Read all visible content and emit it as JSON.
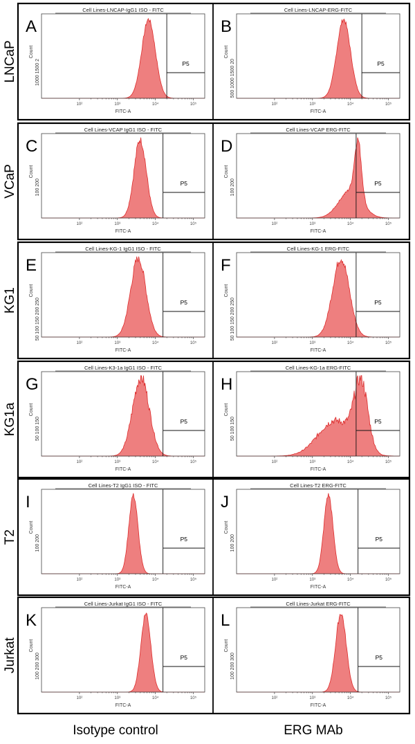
{
  "columns": [
    "Isotype control",
    "ERG MAb"
  ],
  "chart_data": {
    "type": "histogram-grid",
    "x_axis": {
      "label": "FITC-A",
      "scale": "log",
      "ticks": [
        "10²",
        "10³",
        "10⁴",
        "10⁵"
      ],
      "xlim_log10": [
        1.0,
        5.3
      ]
    },
    "gate_name": "P5",
    "fill_color": "#ee7f7f",
    "line_color": "#dd2b2b",
    "rows": [
      {
        "label": "LNCaP",
        "panels": [
          {
            "letter": "A",
            "title": "Cell Lines-LNCAP-IgG1 ISO - FITC",
            "y_label": "Count",
            "y_ticks": "1000 1500 2",
            "gate_start_log10": 4.3,
            "series": {
              "peaks": [
                {
                  "mu": 3.82,
                  "sigma": 0.18,
                  "amp": 1.0
                }
              ],
              "noise": 0.03
            }
          },
          {
            "letter": "B",
            "title": "Cell Lines-LNCAP-ERG-FITC",
            "y_label": "Count",
            "y_ticks": "500 1000 1500 20",
            "gate_start_log10": 4.3,
            "series": {
              "peaks": [
                {
                  "mu": 3.82,
                  "sigma": 0.18,
                  "amp": 1.0
                }
              ],
              "noise": 0.03
            }
          }
        ]
      },
      {
        "label": "VCaP",
        "panels": [
          {
            "letter": "C",
            "title": "Cell Lines-VCAP IgG1 ISO - FITC",
            "y_label": "Count",
            "y_ticks": "100 200",
            "gate_start_log10": 4.2,
            "series": {
              "peaks": [
                {
                  "mu": 3.6,
                  "sigma": 0.16,
                  "amp": 1.0
                }
              ],
              "noise": 0.06
            }
          },
          {
            "letter": "D",
            "title": "Cell Lines-VCAP ERG-FITC",
            "y_label": "Count",
            "y_ticks": "100 200",
            "gate_start_log10": 4.15,
            "series": {
              "peaks": [
                {
                  "mu": 4.0,
                  "sigma": 0.3,
                  "amp": 0.35
                },
                {
                  "mu": 4.2,
                  "sigma": 0.09,
                  "amp": 0.72
                }
              ],
              "noise": 0.05
            }
          }
        ]
      },
      {
        "label": "KG1",
        "panels": [
          {
            "letter": "E",
            "title": "Cell Lines-KG-1 IgG1 ISO - FITC",
            "y_label": "Count",
            "y_ticks": "50 100 150 200 250",
            "gate_start_log10": 4.2,
            "series": {
              "peaks": [
                {
                  "mu": 3.55,
                  "sigma": 0.2,
                  "amp": 1.0
                }
              ],
              "noise": 0.06
            }
          },
          {
            "letter": "F",
            "title": "Cell Lines-KG-1 ERG-FITC",
            "y_label": "Count",
            "y_ticks": "50 100 150 200 250",
            "gate_start_log10": 4.15,
            "series": {
              "peaks": [
                {
                  "mu": 3.75,
                  "sigma": 0.22,
                  "amp": 1.0
                }
              ],
              "noise": 0.06
            }
          }
        ]
      },
      {
        "label": "KG1a",
        "panels": [
          {
            "letter": "G",
            "title": "Cell Lines-K3-1a IgG1 ISO - FITC",
            "y_label": "Count",
            "y_ticks": "50 100 150",
            "gate_start_log10": 4.2,
            "series": {
              "peaks": [
                {
                  "mu": 3.62,
                  "sigma": 0.22,
                  "amp": 1.0
                }
              ],
              "noise": 0.08
            }
          },
          {
            "letter": "H",
            "title": "Cell Lines-KG-1a ERG-FITC",
            "y_label": "Count",
            "y_ticks": "50 100 150",
            "gate_start_log10": 4.15,
            "series": {
              "peaks": [
                {
                  "mu": 3.6,
                  "sigma": 0.45,
                  "amp": 0.45
                },
                {
                  "mu": 4.28,
                  "sigma": 0.18,
                  "amp": 0.85
                }
              ],
              "noise": 0.1
            }
          }
        ]
      },
      {
        "label": "T2",
        "panels": [
          {
            "letter": "I",
            "title": "Cell Lines-T2 IgG1 ISO - FITC",
            "y_label": "Count",
            "y_ticks": "100 200",
            "gate_start_log10": 4.2,
            "series": {
              "peaks": [
                {
                  "mu": 3.42,
                  "sigma": 0.12,
                  "amp": 1.0
                }
              ],
              "noise": 0.04
            }
          },
          {
            "letter": "J",
            "title": "Cell Lines-T2 ERG-FITC",
            "y_label": "Count",
            "y_ticks": "100 200",
            "gate_start_log10": 4.2,
            "series": {
              "peaks": [
                {
                  "mu": 3.42,
                  "sigma": 0.12,
                  "amp": 1.0
                }
              ],
              "noise": 0.04
            }
          }
        ]
      },
      {
        "label": "Jurkat",
        "panels": [
          {
            "letter": "K",
            "title": "Cell Lines-Jurkat IgG1 ISO - FITC",
            "y_label": "Count",
            "y_ticks": "100 200 300",
            "gate_start_log10": 4.2,
            "series": {
              "peaks": [
                {
                  "mu": 3.75,
                  "sigma": 0.13,
                  "amp": 1.0
                }
              ],
              "noise": 0.04
            }
          },
          {
            "letter": "L",
            "title": "Cell Lines-Jurkat ERG-FITC",
            "y_label": "Count",
            "y_ticks": "100 200 300",
            "gate_start_log10": 4.2,
            "series": {
              "peaks": [
                {
                  "mu": 3.75,
                  "sigma": 0.14,
                  "amp": 1.0
                }
              ],
              "noise": 0.04
            }
          }
        ]
      }
    ]
  }
}
